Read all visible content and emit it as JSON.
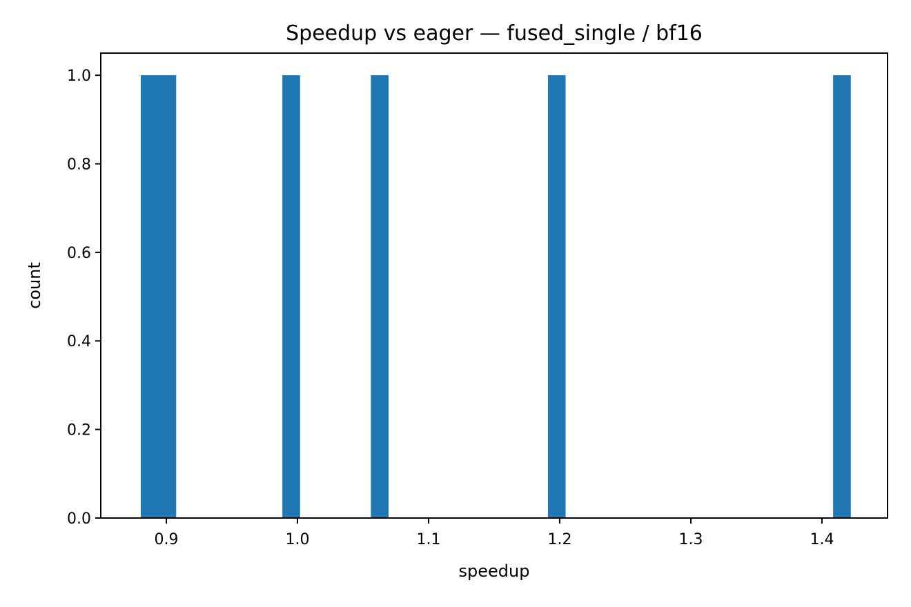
{
  "chart_data": {
    "type": "bar",
    "title": "Speedup vs eager — fused_single / bf16",
    "xlabel": "speedup",
    "ylabel": "count",
    "xlim": [
      0.85,
      1.45
    ],
    "ylim": [
      0.0,
      1.05
    ],
    "xticks": [
      0.9,
      1.0,
      1.1,
      1.2,
      1.3,
      1.4
    ],
    "xtick_labels": [
      "0.9",
      "1.0",
      "1.1",
      "1.2",
      "1.3",
      "1.4"
    ],
    "yticks": [
      0.0,
      0.2,
      0.4,
      0.6,
      0.8,
      1.0
    ],
    "ytick_labels": [
      "0.0",
      "0.2",
      "0.4",
      "0.6",
      "0.8",
      "1.0"
    ],
    "bins": [
      {
        "x0": 0.8805,
        "x1": 0.9075,
        "count": 1
      },
      {
        "x0": 0.9885,
        "x1": 1.002,
        "count": 1
      },
      {
        "x0": 1.056,
        "x1": 1.0695,
        "count": 1
      },
      {
        "x0": 1.191,
        "x1": 1.2045,
        "count": 1
      },
      {
        "x0": 1.4085,
        "x1": 1.422,
        "count": 1
      }
    ],
    "bar_color": "#1f77b4",
    "grid": false,
    "legend": "none"
  }
}
